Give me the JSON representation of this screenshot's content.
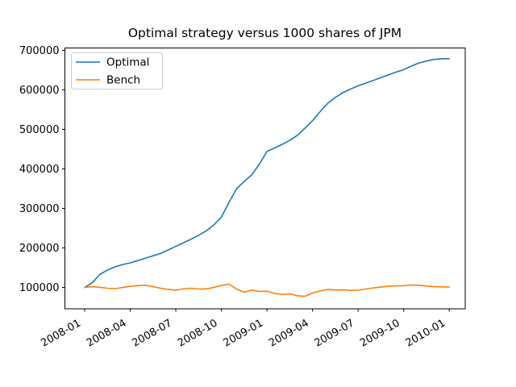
{
  "chart_data": {
    "type": "line",
    "title": "Optimal strategy versus 1000 shares of JPM",
    "xlabel": "",
    "ylabel": "",
    "grid": false,
    "x_unit": "months since 2008-01",
    "xlim_months": [
      -1.3,
      25.05
    ],
    "ylim": [
      46000,
      706000
    ],
    "y_ticks": [
      100000,
      200000,
      300000,
      400000,
      500000,
      600000,
      700000
    ],
    "y_tick_labels": [
      "100000",
      "200000",
      "300000",
      "400000",
      "500000",
      "600000",
      "700000"
    ],
    "x_tick_months": [
      0,
      3,
      6,
      9,
      12,
      15,
      18,
      21,
      24
    ],
    "x_tick_labels": [
      "2008-01",
      "2008-04",
      "2008-07",
      "2008-10",
      "2009-01",
      "2009-04",
      "2009-07",
      "2009-10",
      "2010-01"
    ],
    "x_tick_rotation_deg": -30,
    "legend": {
      "position": "upper-left",
      "entries": [
        {
          "label": "Optimal",
          "color": "#1f77b4"
        },
        {
          "label": "Bench",
          "color": "#ff7f0e"
        }
      ]
    },
    "x": [
      0,
      0.5,
      1,
      1.5,
      2,
      2.5,
      3,
      3.5,
      4,
      4.5,
      5,
      5.5,
      6,
      6.5,
      7,
      7.5,
      8,
      8.5,
      9,
      9.5,
      10,
      10.5,
      11,
      11.5,
      12,
      12.5,
      13,
      13.5,
      14,
      14.5,
      15,
      15.5,
      16,
      16.5,
      17,
      17.5,
      18,
      18.5,
      19,
      19.5,
      20,
      20.5,
      21,
      21.5,
      22,
      22.5,
      23,
      23.5,
      24
    ],
    "series": [
      {
        "name": "Optimal",
        "color": "#1f77b4",
        "values": [
          100000,
          112000,
          133000,
          144000,
          152000,
          158000,
          162000,
          168000,
          174000,
          180000,
          186000,
          195000,
          204000,
          213000,
          222000,
          232000,
          243000,
          258000,
          278000,
          315000,
          350000,
          368000,
          385000,
          412000,
          444000,
          453000,
          462000,
          472000,
          485000,
          503000,
          522000,
          545000,
          566000,
          581000,
          593000,
          602000,
          610000,
          617000,
          624000,
          631000,
          638000,
          645000,
          651000,
          660000,
          668000,
          673000,
          677000,
          678500,
          679000
        ]
      },
      {
        "name": "Bench",
        "color": "#ff7f0e",
        "values": [
          100000,
          102000,
          100500,
          98000,
          97000,
          100000,
          103000,
          104500,
          105500,
          102000,
          98000,
          95000,
          93000,
          96500,
          98000,
          96000,
          96500,
          100000,
          105000,
          108500,
          96000,
          88000,
          93000,
          90000,
          90500,
          85000,
          82000,
          84000,
          79000,
          77500,
          86000,
          91000,
          95000,
          93500,
          94000,
          92500,
          93000,
          96000,
          99000,
          101000,
          103000,
          104000,
          104500,
          106000,
          105500,
          103500,
          102000,
          101500,
          101000
        ]
      }
    ]
  }
}
